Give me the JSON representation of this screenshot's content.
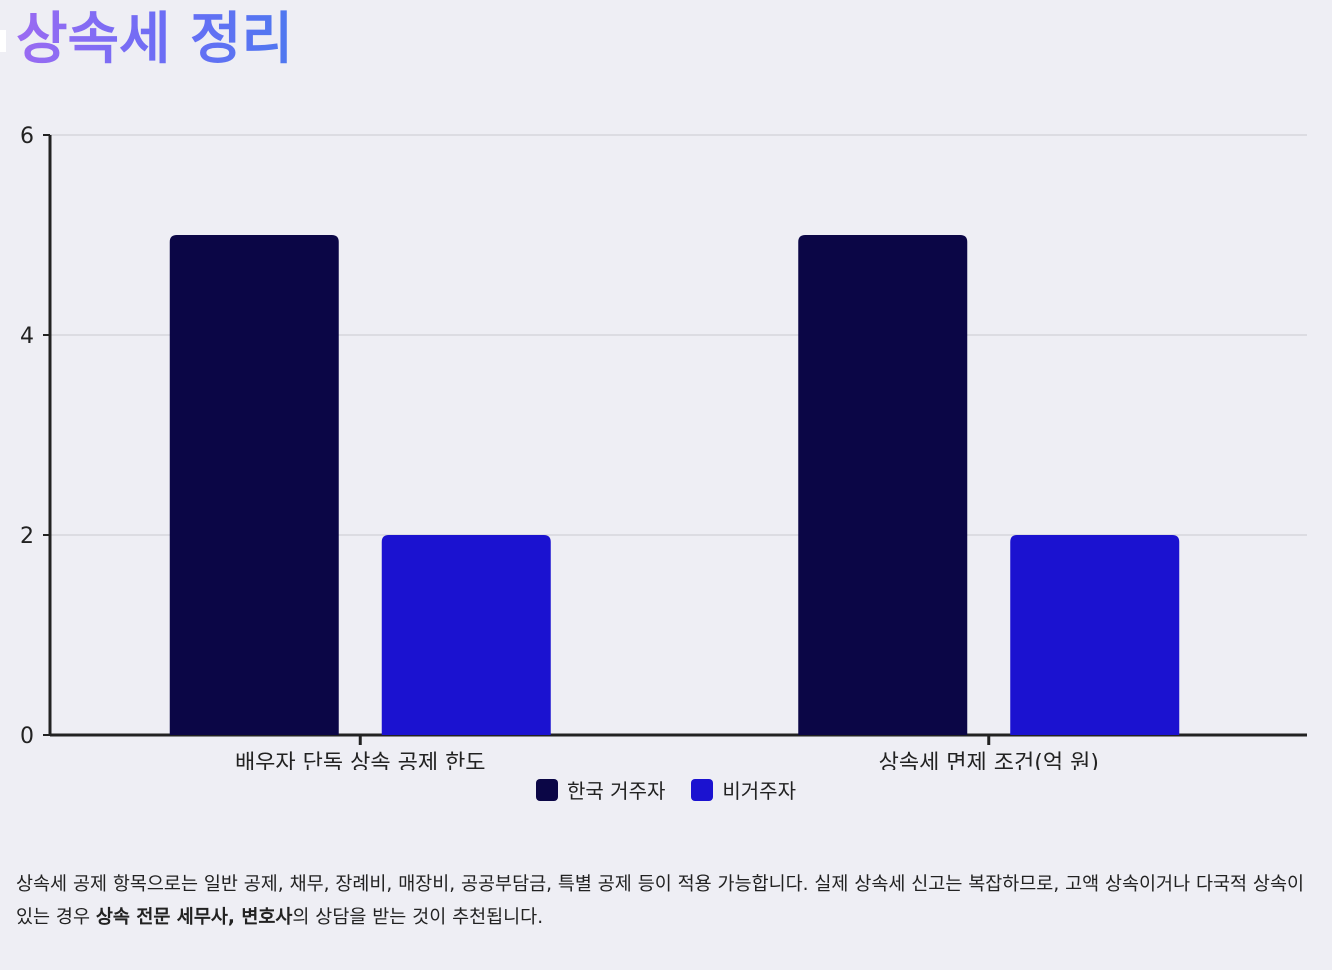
{
  "title": "상속세 정리",
  "chart_data": {
    "type": "bar",
    "title": "",
    "xlabel": "",
    "ylabel": "",
    "categories": [
      "배우자 단독 상속 공제 한도",
      "상속세 면제 조건(억 원)"
    ],
    "series": [
      {
        "name": "한국 거주자",
        "values": [
          5,
          5
        ],
        "color": "#0b0646"
      },
      {
        "name": "비거주자",
        "values": [
          2,
          2
        ],
        "color": "#1b12d0"
      }
    ],
    "ylim": [
      0,
      6
    ],
    "yticks": [
      "0",
      "2",
      "4",
      "6"
    ],
    "grid": true,
    "legend": "bottom"
  },
  "note": {
    "part1": "상속세 공제 항목으로는 일반 공제, 채무, 장례비, 매장비, 공공부담금, 특별 공제 등이 적용 가능합니다. 실제 상속세 신고는 복잡하므로, 고액 상속이거나 다국적 상속이 있는 경우 ",
    "bold": "상속 전문 세무사, 변호사",
    "part2": "의 상담을 받는 것이 추천됩니다."
  }
}
